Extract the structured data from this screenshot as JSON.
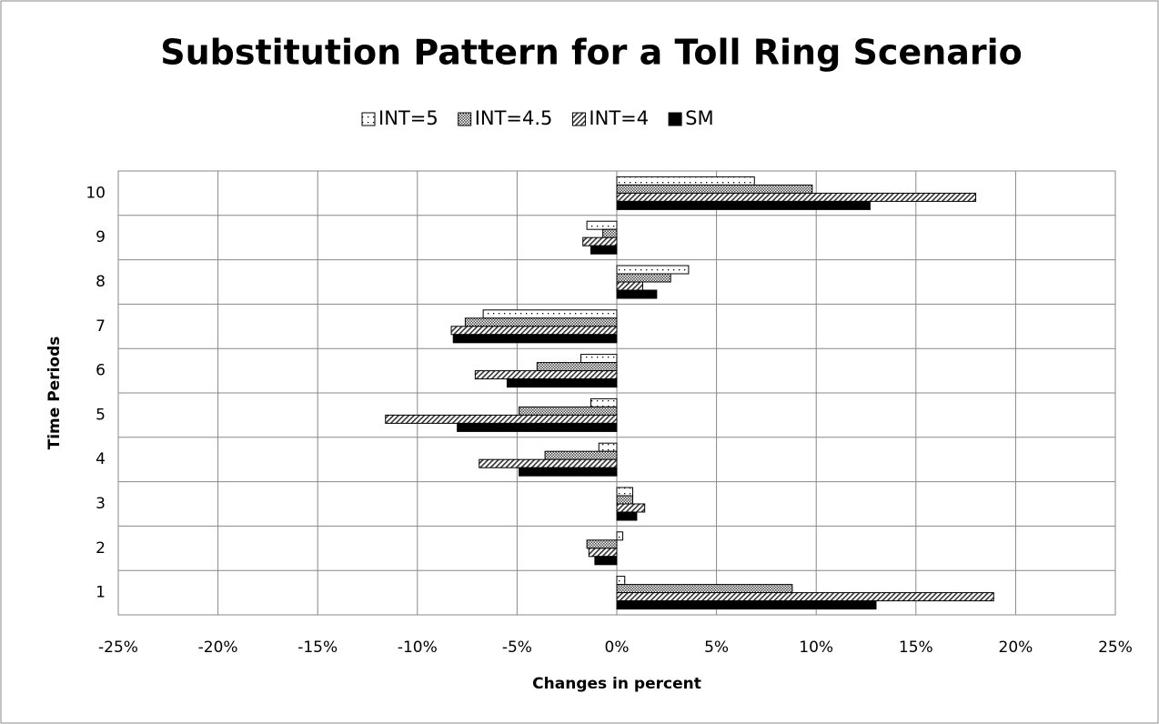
{
  "chart_data": {
    "type": "barh",
    "title": "Substitution Pattern for a Toll Ring Scenario",
    "x_label": "Changes in percent",
    "y_label": "Time Periods",
    "categories": [
      "1",
      "2",
      "3",
      "4",
      "5",
      "6",
      "7",
      "8",
      "9",
      "10"
    ],
    "series": [
      {
        "name": "INT=5",
        "color": "#ffffff",
        "pattern": "dots",
        "values": [
          0.4,
          0.3,
          0.8,
          -0.9,
          -1.3,
          -1.8,
          -6.7,
          3.6,
          -1.5,
          6.9
        ]
      },
      {
        "name": "INT=4.5",
        "color": "#808080",
        "pattern": "crosshatch",
        "values": [
          8.8,
          -1.5,
          0.8,
          -3.6,
          -4.9,
          -4.0,
          -7.6,
          2.7,
          -0.7,
          9.8
        ]
      },
      {
        "name": "INT=4",
        "color": "#c0c0c0",
        "pattern": "diagonal",
        "values": [
          18.9,
          -1.4,
          1.4,
          -6.9,
          -11.6,
          -7.1,
          -8.3,
          1.3,
          -1.7,
          18.0
        ]
      },
      {
        "name": "SM",
        "color": "#000000",
        "pattern": "solid",
        "values": [
          13.0,
          -1.1,
          1.0,
          -4.9,
          -8.0,
          -5.5,
          -8.2,
          2.0,
          -1.3,
          12.7
        ]
      }
    ],
    "xlim": [
      -25,
      25
    ],
    "xticks": [
      {
        "value": -25,
        "label": "-25%"
      },
      {
        "value": -20,
        "label": "-20%"
      },
      {
        "value": -15,
        "label": "-15%"
      },
      {
        "value": -10,
        "label": "-10%"
      },
      {
        "value": -5,
        "label": "-5%"
      },
      {
        "value": 0,
        "label": "0%"
      },
      {
        "value": 5,
        "label": "5%"
      },
      {
        "value": 10,
        "label": "10%"
      },
      {
        "value": 15,
        "label": "15%"
      },
      {
        "value": 20,
        "label": "20%"
      },
      {
        "value": 25,
        "label": "25%"
      }
    ],
    "grid": true,
    "legend": "top"
  }
}
